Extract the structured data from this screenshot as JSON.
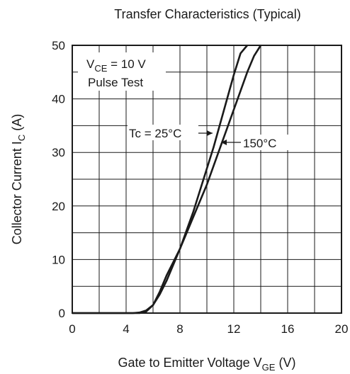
{
  "chart_data": {
    "type": "line",
    "title": "Transfer Characteristics (Typical)",
    "xlabel": {
      "main": "Gate to Emitter Voltage",
      "symbol": "V",
      "sub": "GE",
      "unit": "(V)"
    },
    "ylabel": {
      "main": "Collector Current",
      "symbol": "I",
      "sub": "C",
      "unit": "(A)"
    },
    "xlim": [
      0,
      20
    ],
    "ylim": [
      0,
      50
    ],
    "xticks": [
      "0",
      "4",
      "8",
      "12",
      "16",
      "20"
    ],
    "yticks": [
      "0",
      "10",
      "20",
      "30",
      "40",
      "50"
    ],
    "grid": true,
    "conditions": {
      "line1": {
        "symbol": "V",
        "sub": "CE",
        "rest": " = 10 V"
      },
      "line2": "Pulse Test"
    },
    "series": [
      {
        "name": "Tc = 25°C",
        "x": [
          4.5,
          5.0,
          5.5,
          6.0,
          6.5,
          7.0,
          7.5,
          8.0,
          8.5,
          9.0,
          9.5,
          10.0,
          10.5,
          11.0,
          11.5,
          12.0,
          12.5,
          13.0
        ],
        "y": [
          0,
          0.1,
          0.5,
          1.5,
          3.5,
          6.0,
          9.0,
          12.0,
          15.5,
          19.0,
          23.0,
          27.0,
          31.0,
          35.5,
          40.0,
          44.5,
          48.5,
          50
        ]
      },
      {
        "name": "150°C",
        "x": [
          5.0,
          5.5,
          6.0,
          6.5,
          7.0,
          7.5,
          8.0,
          8.5,
          9.0,
          9.5,
          10.0,
          10.5,
          11.0,
          11.5,
          12.0,
          12.5,
          13.0,
          13.5,
          14.0
        ],
        "y": [
          0,
          0.3,
          1.5,
          4.0,
          7.0,
          9.5,
          12.0,
          15.0,
          18.0,
          21.0,
          24.0,
          27.5,
          31.0,
          34.5,
          38.0,
          41.5,
          45.0,
          48.0,
          50
        ]
      }
    ]
  }
}
